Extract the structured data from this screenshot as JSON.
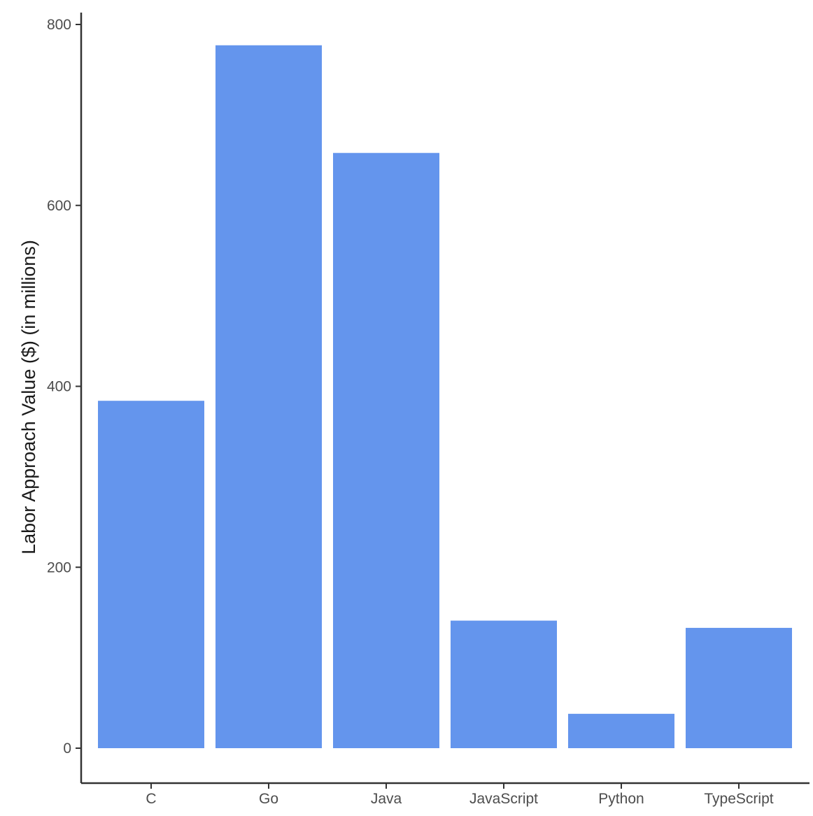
{
  "chart_data": {
    "type": "bar",
    "title": "",
    "xlabel": "",
    "ylabel": "Labor Approach Value ($) (in millions)",
    "categories": [
      "C",
      "Go",
      "Java",
      "JavaScript",
      "Python",
      "TypeScript"
    ],
    "values": [
      384,
      777,
      658,
      141,
      38,
      133
    ],
    "ylim": [
      0,
      800
    ],
    "yticks": [
      0,
      200,
      400,
      600,
      800
    ],
    "grid": false,
    "legend": "none",
    "bar_color": "#6495ED"
  }
}
